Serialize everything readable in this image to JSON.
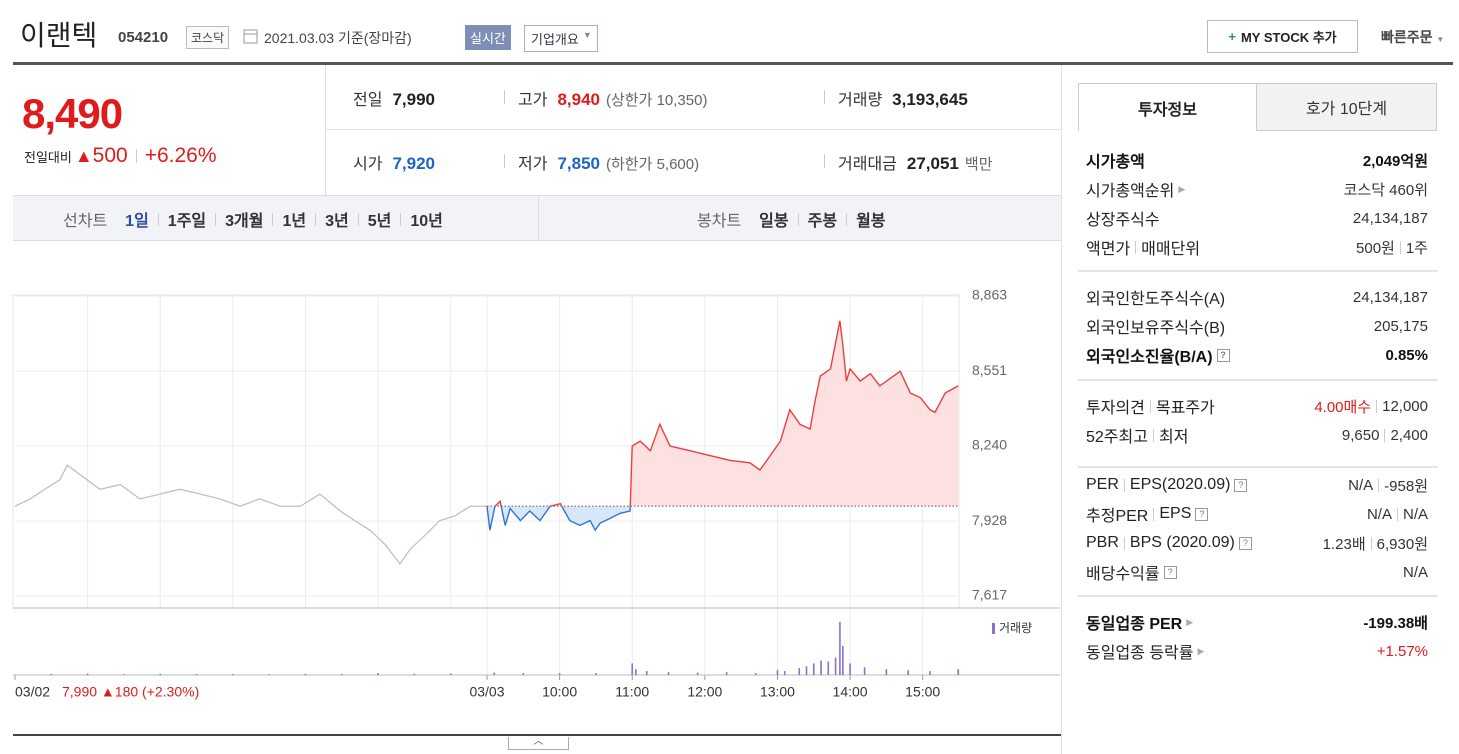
{
  "header": {
    "name": "이랜텍",
    "code": "054210",
    "market": "코스닥",
    "date": "2021.03.03 기준(장마감)",
    "realtime": "실시간",
    "company": "기업개요",
    "mystock": "MY STOCK 추가",
    "quick_order": "빠른주문"
  },
  "quote": {
    "price": "8,490",
    "change_label": "전일대비",
    "change": "500",
    "change_rate": "+6.26%",
    "cells": [
      {
        "label": "전일",
        "value": "7,990",
        "color": "#222"
      },
      {
        "label": "고가",
        "value": "8,940",
        "note": "(상한가 10,350)",
        "color": "#e01b1b"
      },
      {
        "label": "거래량",
        "value": "3,193,645",
        "color": "#222"
      },
      {
        "label": "시가",
        "value": "7,920",
        "color": "#1d63c8"
      },
      {
        "label": "저가",
        "value": "7,850",
        "note": "(하한가 5,600)",
        "color": "#1d63c8"
      },
      {
        "label": "거래대금",
        "value": "27,051",
        "note": "백만",
        "color": "#222"
      }
    ]
  },
  "periods": {
    "line_label": "선차트",
    "line": [
      "1일",
      "1주일",
      "3개월",
      "1년",
      "3년",
      "5년",
      "10년"
    ],
    "candle_label": "봉차트",
    "candle": [
      "일봉",
      "주봉",
      "월봉"
    ]
  },
  "chart_data": {
    "type": "line",
    "xlim": [
      0,
      13
    ],
    "xticks": [
      {
        "value": 0,
        "label": "03/02"
      },
      {
        "value": 6.5,
        "label": "03/03"
      },
      {
        "value": 7.5,
        "label": "10:00"
      },
      {
        "value": 8.5,
        "label": "11:00"
      },
      {
        "value": 9.5,
        "label": "12:00"
      },
      {
        "value": 10.5,
        "label": "13:00"
      },
      {
        "value": 11.5,
        "label": "14:00"
      },
      {
        "value": 12.5,
        "label": "15:00"
      }
    ],
    "minor_xticks": [
      1,
      2,
      3,
      4,
      5,
      6
    ],
    "ylim": [
      7567,
      8867
    ],
    "yticks": [
      {
        "value": 8863,
        "label": "8,863"
      },
      {
        "value": 8551,
        "label": "8,551"
      },
      {
        "value": 8240,
        "label": "8,240"
      },
      {
        "value": 7928,
        "label": "7,928"
      },
      {
        "value": 7617,
        "label": "7,617"
      }
    ],
    "grid": true,
    "baseline": 7990,
    "prev_day": {
      "color": "#bbbbbb",
      "x": [
        0,
        0.21,
        0.41,
        0.62,
        0.72,
        0.9,
        1.17,
        1.45,
        1.72,
        2.0,
        2.27,
        2.55,
        2.82,
        3.1,
        3.37,
        3.65,
        3.93,
        4.2,
        4.48,
        4.68,
        4.89,
        5.1,
        5.3,
        5.44,
        5.65,
        5.85,
        6.06,
        6.27,
        6.5
      ],
      "values": [
        7990,
        8020,
        8060,
        8100,
        8160,
        8120,
        8060,
        8080,
        8020,
        8040,
        8060,
        8040,
        8020,
        7990,
        8020,
        7990,
        7990,
        8040,
        7970,
        7930,
        7890,
        7830,
        7750,
        7810,
        7870,
        7930,
        7950,
        7990,
        7990
      ]
    },
    "today": {
      "up_color": "#f03c3c",
      "down_color": "#2f72d6",
      "up_fill": "#fde1e1",
      "down_fill": "#d8e7f8",
      "x": [
        6.5,
        6.54,
        6.61,
        6.68,
        6.75,
        6.82,
        6.96,
        7.09,
        7.23,
        7.37,
        7.51,
        7.64,
        7.78,
        7.92,
        7.99,
        8.06,
        8.2,
        8.33,
        8.47,
        8.5,
        8.61,
        8.75,
        8.88,
        9.02,
        9.3,
        9.57,
        9.85,
        10.12,
        10.26,
        10.4,
        10.54,
        10.67,
        10.81,
        10.95,
        11.02,
        11.09,
        11.23,
        11.36,
        11.4,
        11.45,
        11.5,
        11.64,
        11.78,
        11.91,
        12.19,
        12.33,
        12.47,
        12.6,
        12.67,
        12.81,
        12.99
      ],
      "values": [
        7990,
        7890,
        7990,
        8010,
        7910,
        7980,
        7930,
        7970,
        7930,
        7990,
        8000,
        7930,
        7910,
        7930,
        7890,
        7920,
        7940,
        7960,
        7970,
        8240,
        8260,
        8220,
        8330,
        8240,
        8220,
        8200,
        8180,
        8170,
        8140,
        8200,
        8260,
        8390,
        8330,
        8310,
        8430,
        8530,
        8560,
        8760,
        8660,
        8510,
        8560,
        8510,
        8540,
        8490,
        8550,
        8460,
        8440,
        8390,
        8380,
        8460,
        8490
      ]
    },
    "volume": {
      "name": "거래량",
      "color": "#8c6fd0",
      "ylim": [
        0,
        60000
      ],
      "x": [
        0.5,
        1.0,
        1.5,
        2.0,
        2.5,
        3.0,
        3.5,
        4.0,
        4.5,
        5.0,
        5.5,
        6.0,
        6.6,
        7.0,
        7.5,
        8.0,
        8.5,
        8.55,
        8.7,
        9.0,
        9.4,
        9.8,
        10.2,
        10.5,
        10.6,
        10.8,
        10.9,
        11.0,
        11.1,
        11.2,
        11.3,
        11.36,
        11.4,
        11.5,
        11.7,
        12.0,
        12.3,
        12.6,
        12.99
      ],
      "values": [
        1200,
        1500,
        900,
        1200,
        1000,
        1000,
        800,
        1300,
        1100,
        2000,
        1400,
        1500,
        2500,
        2000,
        1800,
        2000,
        12000,
        6000,
        4000,
        3000,
        2500,
        3000,
        2000,
        5000,
        4000,
        7000,
        9000,
        12000,
        15000,
        14000,
        18000,
        55000,
        30000,
        12000,
        8000,
        6000,
        5000,
        4000,
        6000
      ]
    },
    "prev_summary": "7,990 ▲180 (+2.30%)"
  },
  "side": {
    "tabs": [
      "투자정보",
      "호가 10단계"
    ],
    "sections": [
      [
        {
          "label": [
            "시가총액"
          ],
          "value": [
            "2,049억원"
          ],
          "bold": true
        },
        {
          "label": [
            "시가총액순위"
          ],
          "value": [
            "코스닥 460위"
          ],
          "link": true
        },
        {
          "label": [
            "상장주식수"
          ],
          "value": [
            "24,134,187"
          ]
        },
        {
          "label": [
            "액면가",
            "매매단위"
          ],
          "value": [
            "500원",
            "1주"
          ]
        }
      ],
      [
        {
          "label": [
            "외국인한도주식수(A)"
          ],
          "value": [
            "24,134,187"
          ]
        },
        {
          "label": [
            "외국인보유주식수(B)"
          ],
          "value": [
            "205,175"
          ]
        },
        {
          "label": [
            "외국인소진율(B/A)"
          ],
          "value": [
            "0.85%"
          ],
          "bold": true,
          "help": true
        }
      ],
      [
        {
          "label": [
            "투자의견",
            "목표주가"
          ],
          "value": [
            "4.00매수",
            "12,000"
          ],
          "accent": 0
        },
        {
          "label": [
            "52주최고",
            "최저"
          ],
          "value": [
            "9,650",
            "2,400"
          ]
        }
      ],
      [
        {
          "label": [
            "PER",
            "EPS(2020.09)"
          ],
          "value": [
            "N/A",
            "-958원"
          ],
          "help": true
        },
        {
          "label": [
            "추정PER",
            "EPS"
          ],
          "value": [
            "N/A",
            "N/A"
          ],
          "help": true
        },
        {
          "label": [
            "PBR",
            "BPS (2020.09)"
          ],
          "value": [
            "1.23배",
            "6,930원"
          ],
          "help": true
        },
        {
          "label": [
            "배당수익률"
          ],
          "value": [
            "N/A"
          ],
          "help": true
        }
      ],
      [
        {
          "label": [
            "동일업종 PER"
          ],
          "value": [
            "-199.38배"
          ],
          "bold": true,
          "link": true
        },
        {
          "label": [
            "동일업종 등락률"
          ],
          "value": [
            "+1.57%"
          ],
          "link": true,
          "accent": 0
        }
      ]
    ]
  }
}
